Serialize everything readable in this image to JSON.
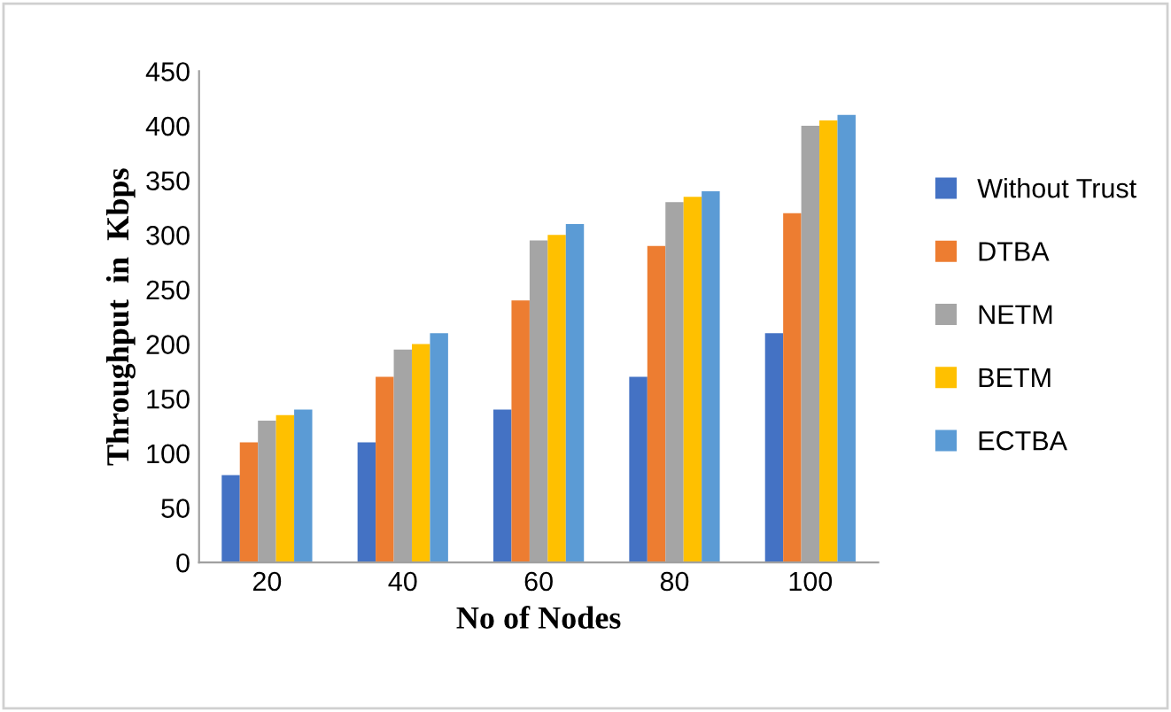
{
  "chart_data": {
    "type": "bar",
    "xlabel": "No of Nodes",
    "ylabel": "Throughput  in  Kbps",
    "categories": [
      "20",
      "40",
      "60",
      "80",
      "100"
    ],
    "series": [
      {
        "name": "Without Trust",
        "color": "#4472c4",
        "values": [
          80,
          110,
          140,
          170,
          210
        ]
      },
      {
        "name": "DTBA",
        "color": "#ed7d31",
        "values": [
          110,
          170,
          240,
          290,
          320
        ]
      },
      {
        "name": "NETM",
        "color": "#a5a5a5",
        "values": [
          130,
          195,
          295,
          330,
          400
        ]
      },
      {
        "name": "BETM",
        "color": "#ffc000",
        "values": [
          135,
          200,
          300,
          335,
          405
        ]
      },
      {
        "name": "ECTBA",
        "color": "#5b9bd5",
        "values": [
          140,
          210,
          310,
          340,
          410
        ]
      }
    ],
    "ylim": [
      0,
      450
    ],
    "yticks": [
      0,
      50,
      100,
      150,
      200,
      250,
      300,
      350,
      400,
      450
    ],
    "grid": false,
    "legend": "right"
  }
}
